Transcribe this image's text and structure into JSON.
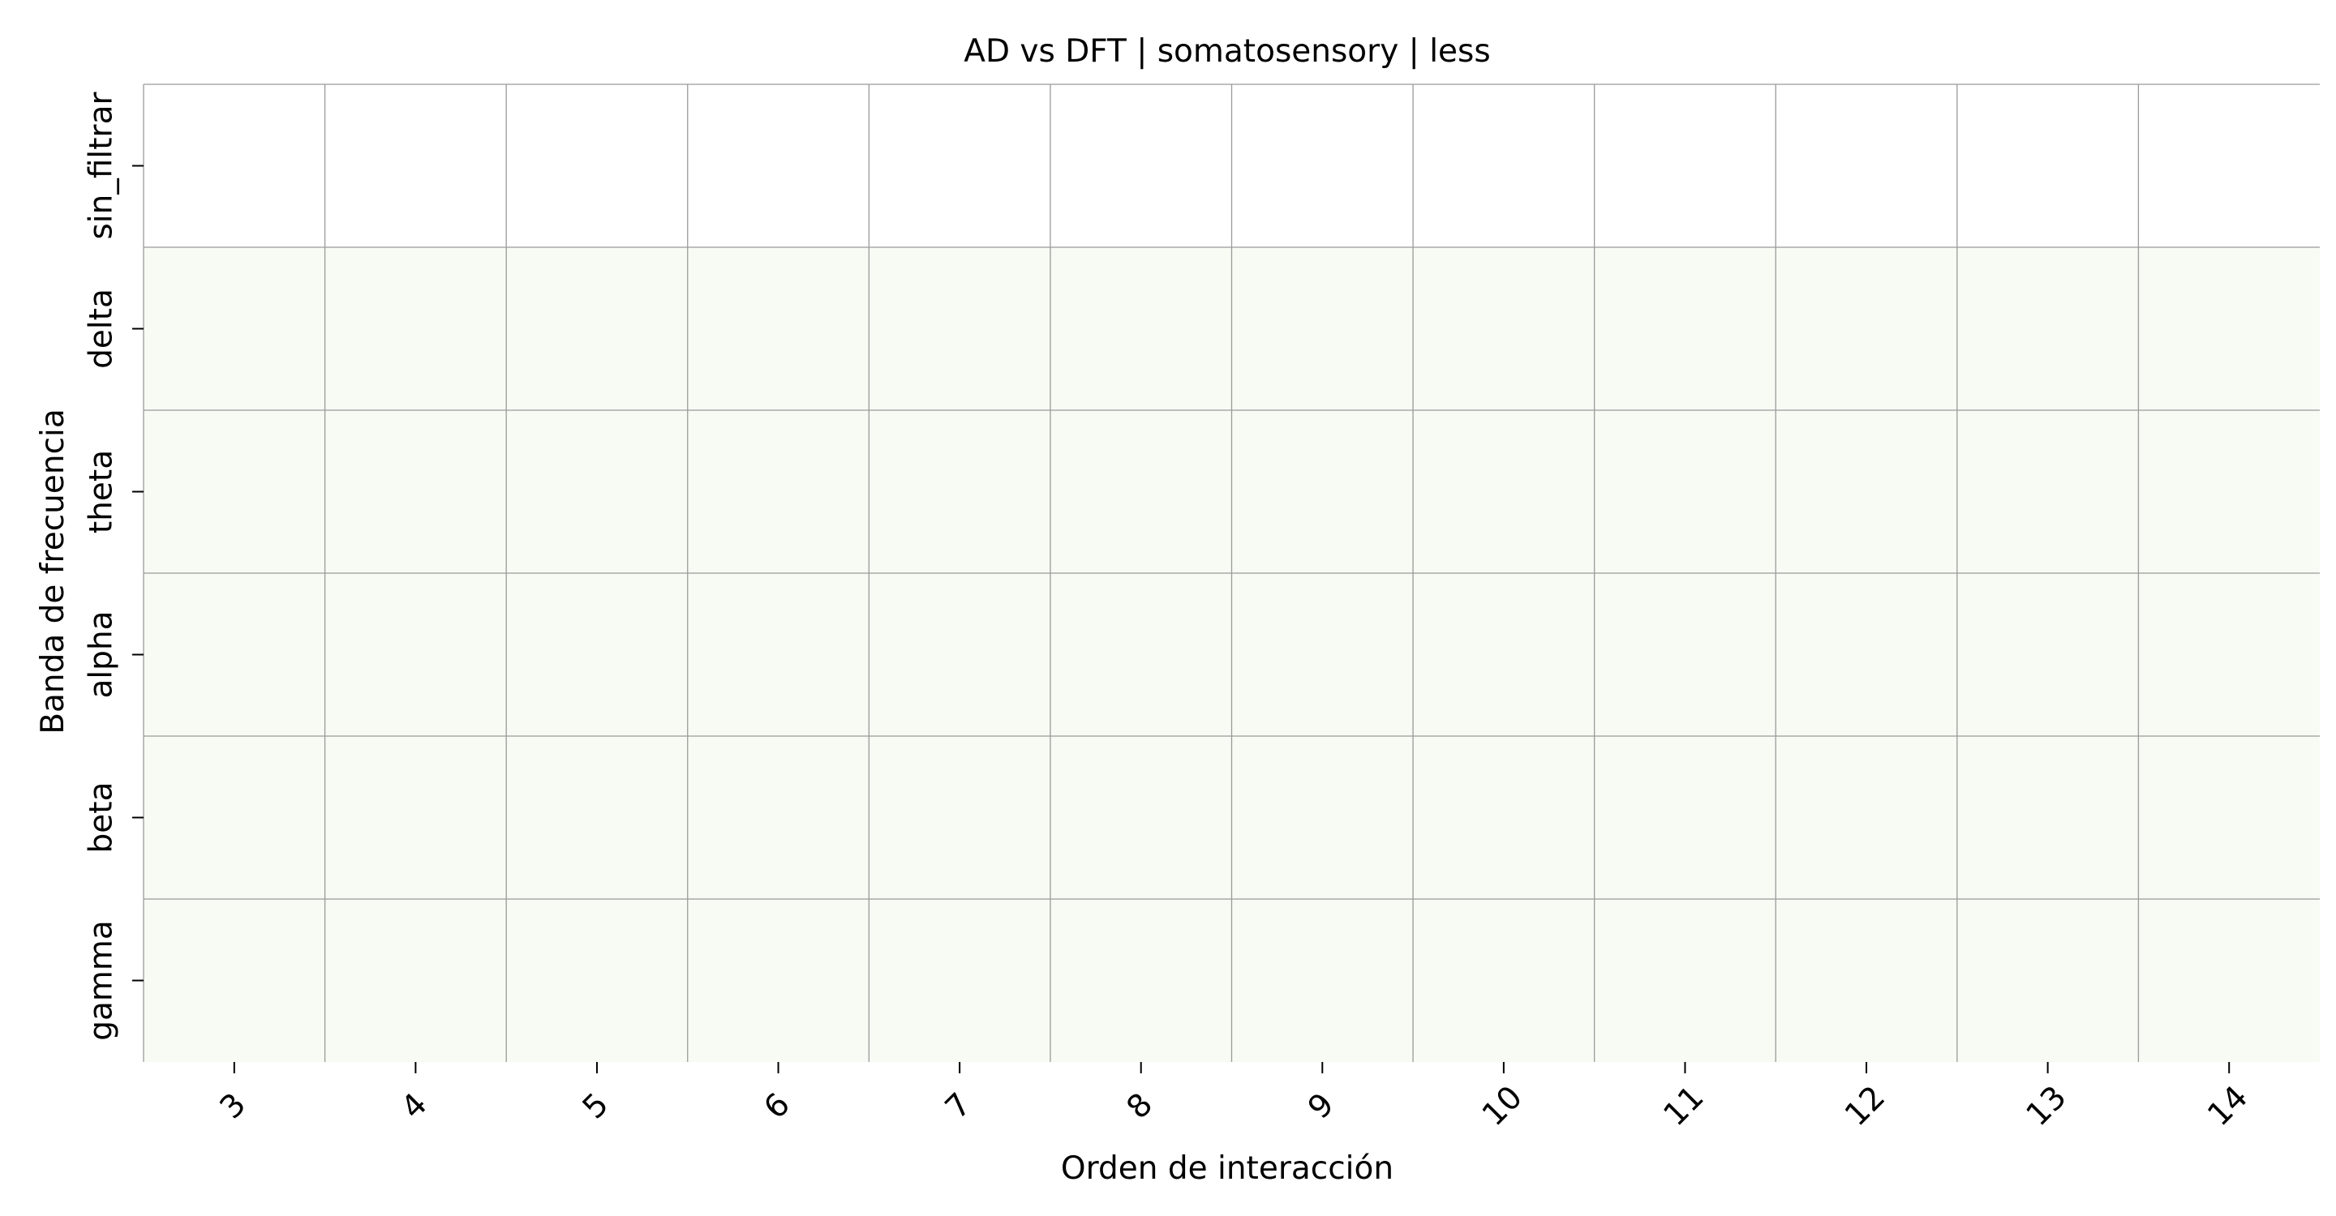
{
  "chart_data": {
    "type": "heatmap",
    "title": "AD vs DFT | somatosensory | less",
    "xlabel": "Orden de interacción",
    "ylabel": "Banda de frecuencia",
    "x_categories": [
      "3",
      "4",
      "5",
      "6",
      "7",
      "8",
      "9",
      "10",
      "11",
      "12",
      "13",
      "14"
    ],
    "y_categories": [
      "sin_filtrar",
      "delta",
      "theta",
      "alpha",
      "beta",
      "gamma"
    ],
    "values": [
      [
        0,
        0,
        0,
        0,
        0,
        0,
        0,
        0,
        0,
        0,
        0,
        0
      ],
      [
        1,
        1,
        1,
        1,
        1,
        1,
        1,
        1,
        1,
        1,
        1,
        1
      ],
      [
        1,
        1,
        1,
        1,
        1,
        1,
        1,
        1,
        1,
        1,
        1,
        1
      ],
      [
        1,
        1,
        1,
        1,
        1,
        1,
        1,
        1,
        1,
        1,
        1,
        1
      ],
      [
        1,
        1,
        1,
        1,
        1,
        1,
        1,
        1,
        1,
        1,
        1,
        1
      ],
      [
        1,
        1,
        1,
        1,
        1,
        1,
        1,
        1,
        1,
        1,
        1,
        1
      ]
    ],
    "colors": {
      "low": "#ffffff",
      "high": "#f7fbf4",
      "gridline": "#9a9a9a",
      "tick": "#000000"
    },
    "x_tick_rotation": -45,
    "grid": true,
    "colorbar": false
  }
}
